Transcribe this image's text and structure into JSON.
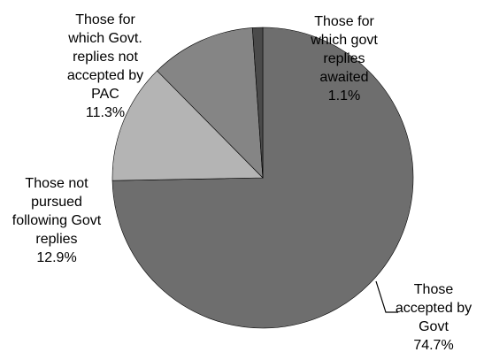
{
  "chart_data": {
    "type": "pie",
    "start_angle_deg": 0,
    "direction": "clockwise",
    "slices": [
      {
        "label_lines": [
          "Those",
          "accepted by",
          "Govt",
          "74.7%"
        ],
        "value": 74.7,
        "color": "#6e6e6e"
      },
      {
        "label_lines": [
          "Those not",
          "pursued",
          "following Govt",
          "replies",
          "12.9%"
        ],
        "value": 12.9,
        "color": "#b4b4b4"
      },
      {
        "label_lines": [
          "Those for",
          "which Govt.",
          "replies not",
          "accepted by",
          "PAC",
          "11.3%"
        ],
        "value": 11.3,
        "color": "#858585"
      },
      {
        "label_lines": [
          "Those for",
          "which govt",
          "replies",
          "awaited",
          "1.1%"
        ],
        "value": 1.1,
        "color": "#4a4a4a"
      }
    ],
    "title": "",
    "legend": "none"
  }
}
